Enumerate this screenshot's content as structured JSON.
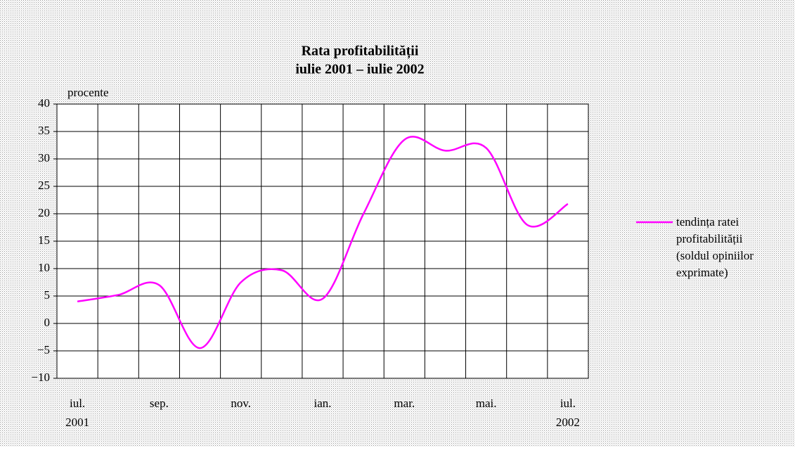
{
  "chart_data": {
    "type": "line",
    "title": "Rata profitabilității",
    "subtitle": "iulie 2001 – iulie 2002",
    "y_label": "procente",
    "categories": [
      "iul.",
      null,
      "sep.",
      null,
      "nov.",
      null,
      "ian.",
      null,
      "mar.",
      null,
      "mai.",
      null,
      "iul."
    ],
    "category_years": [
      "2001",
      null,
      null,
      null,
      null,
      null,
      null,
      null,
      null,
      null,
      null,
      null,
      "2002"
    ],
    "series": [
      {
        "name": "tendința ratei profitabilității (soldul opiniilor exprimate)",
        "color": "#ff00ff",
        "values": [
          4,
          5.2,
          7,
          -4.5,
          7.5,
          9.7,
          4.5,
          20,
          33.5,
          31.5,
          32,
          18,
          21.8
        ]
      }
    ],
    "ylim": [
      -10,
      40
    ],
    "yticks": [
      {
        "value": -10,
        "label": "−10"
      },
      {
        "value": -5,
        "label": "−5"
      },
      0,
      5,
      10,
      15,
      20,
      25,
      30,
      35,
      40
    ],
    "grid": true,
    "legend": "right"
  }
}
